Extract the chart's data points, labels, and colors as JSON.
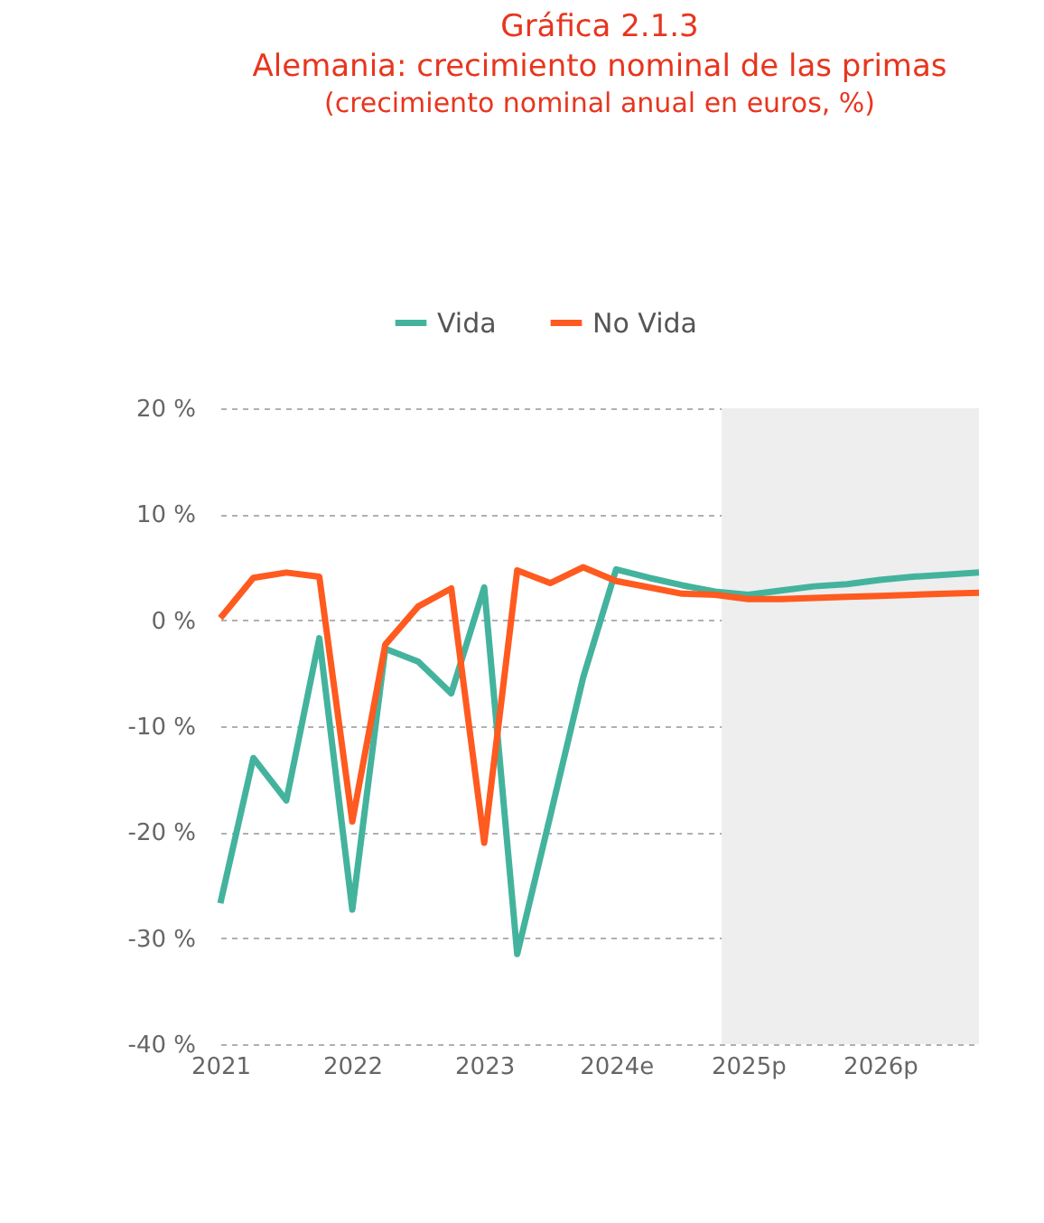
{
  "chart_data": {
    "type": "line",
    "title": "Gráfica 2.1.3\nAlemania: crecimiento nominal de las primas",
    "subtitle": "(crecimiento nominal anual en euros, %)",
    "x": [
      2021,
      2021.25,
      2021.5,
      2021.75,
      2022,
      2022.25,
      2022.5,
      2022.75,
      2023,
      2023.25,
      2023.5,
      2023.75,
      2024,
      2024.25,
      2024.5,
      2024.75,
      2025,
      2025.25,
      2025.5,
      2025.75,
      2026,
      2026.25,
      2026.5,
      2026.75
    ],
    "series": [
      {
        "name": "Vida",
        "color": "#44b39d",
        "values": [
          -26.7,
          -13.0,
          -17.0,
          -1.7,
          -27.3,
          -2.7,
          -3.9,
          -6.9,
          3.1,
          -31.5,
          -18.5,
          -5.4,
          4.8,
          4.0,
          3.3,
          2.7,
          2.4,
          2.8,
          3.2,
          3.4,
          3.8,
          4.1,
          4.3,
          4.5
        ]
      },
      {
        "name": "No Vida",
        "color": "#ff5a1f",
        "values": [
          0.2,
          4.0,
          4.5,
          4.1,
          -19.0,
          -2.3,
          1.3,
          3.0,
          -21.0,
          4.7,
          3.5,
          5.0,
          3.7,
          3.1,
          2.5,
          2.4,
          2.0,
          2.0,
          2.1,
          2.2,
          2.3,
          2.4,
          2.5,
          2.6
        ]
      }
    ],
    "xlim": [
      2021,
      2026.75
    ],
    "xticks": [
      {
        "value": 2021,
        "label": "2021"
      },
      {
        "value": 2022,
        "label": "2022"
      },
      {
        "value": 2023,
        "label": "2023"
      },
      {
        "value": 2024,
        "label": "2024e"
      },
      {
        "value": 2025,
        "label": "2025p"
      },
      {
        "value": 2026,
        "label": "2026p"
      }
    ],
    "ylim": [
      -40,
      20
    ],
    "yticks": [
      {
        "value": -40,
        "label": "-40 %"
      },
      {
        "value": -30,
        "label": "-30 %"
      },
      {
        "value": -20,
        "label": "-20 %"
      },
      {
        "value": -10,
        "label": "-10 %"
      },
      {
        "value": 0,
        "label": "0 %"
      },
      {
        "value": 10,
        "label": "10 %"
      },
      {
        "value": 20,
        "label": "20 %"
      }
    ],
    "bands": [
      {
        "axis": "x",
        "from": 2024.8,
        "to": 2026.75,
        "color": "#eeeeee"
      }
    ],
    "grid": "y",
    "legend": "top",
    "marker": "none",
    "line_style": "solid"
  }
}
